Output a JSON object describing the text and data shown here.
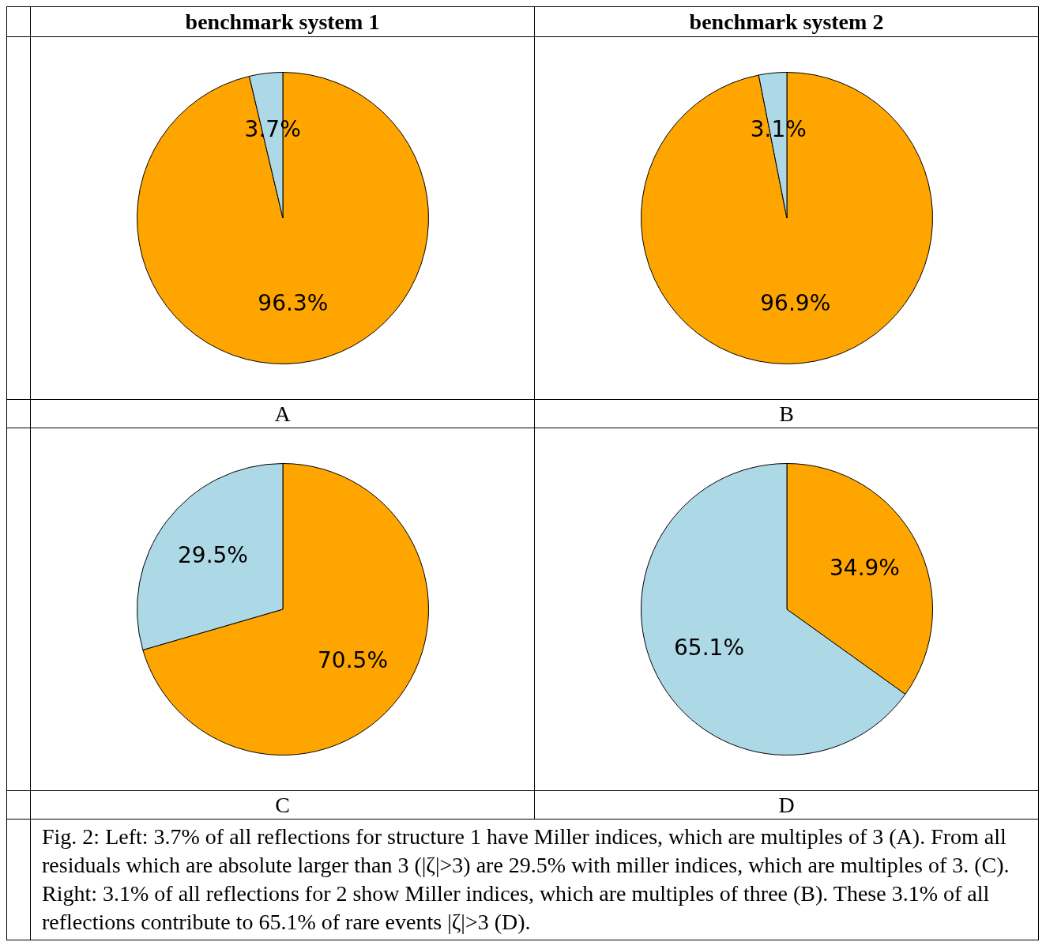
{
  "chart_data": [
    {
      "type": "pie",
      "title": "benchmark system 1",
      "xlabel": "A",
      "categories": [
        null,
        null
      ],
      "values": [
        96.3,
        3.7
      ],
      "value_labels": [
        "96.3%",
        "3.7%"
      ],
      "colors": [
        "#ffa500",
        "#add8e6"
      ],
      "legend": false
    },
    {
      "type": "pie",
      "title": "benchmark system 2",
      "xlabel": "B",
      "categories": [
        null,
        null
      ],
      "values": [
        96.9,
        3.1
      ],
      "value_labels": [
        "96.9%",
        "3.1%"
      ],
      "colors": [
        "#ffa500",
        "#add8e6"
      ],
      "legend": false
    },
    {
      "type": "pie",
      "xlabel": "C",
      "categories": [
        null,
        null
      ],
      "values": [
        70.5,
        29.5
      ],
      "value_labels": [
        "70.5%",
        "29.5%"
      ],
      "colors": [
        "#ffa500",
        "#add8e6"
      ],
      "legend": false
    },
    {
      "type": "pie",
      "xlabel": "D",
      "categories": [
        null,
        null
      ],
      "values": [
        34.9,
        65.1
      ],
      "value_labels": [
        "34.9%",
        "65.1%"
      ],
      "colors": [
        "#ffa500",
        "#add8e6"
      ],
      "legend": false,
      "annotations": [
        "Fig. 2: Left: 3.7% of all reflections for structure 1 have Miller indices, which are multiples of 3 (A). From all residuals which are absolute larger than 3 (|ζ|>3) are 29.5% with miller indices, which are multiples of 3. (C). Right: 3.1% of all reflections for 2 show Miller indices, which are multiples of three (B). These 3.1% of all reflections contribute to 65.1% of rare events |ζ|>3 (D)."
      ]
    }
  ]
}
